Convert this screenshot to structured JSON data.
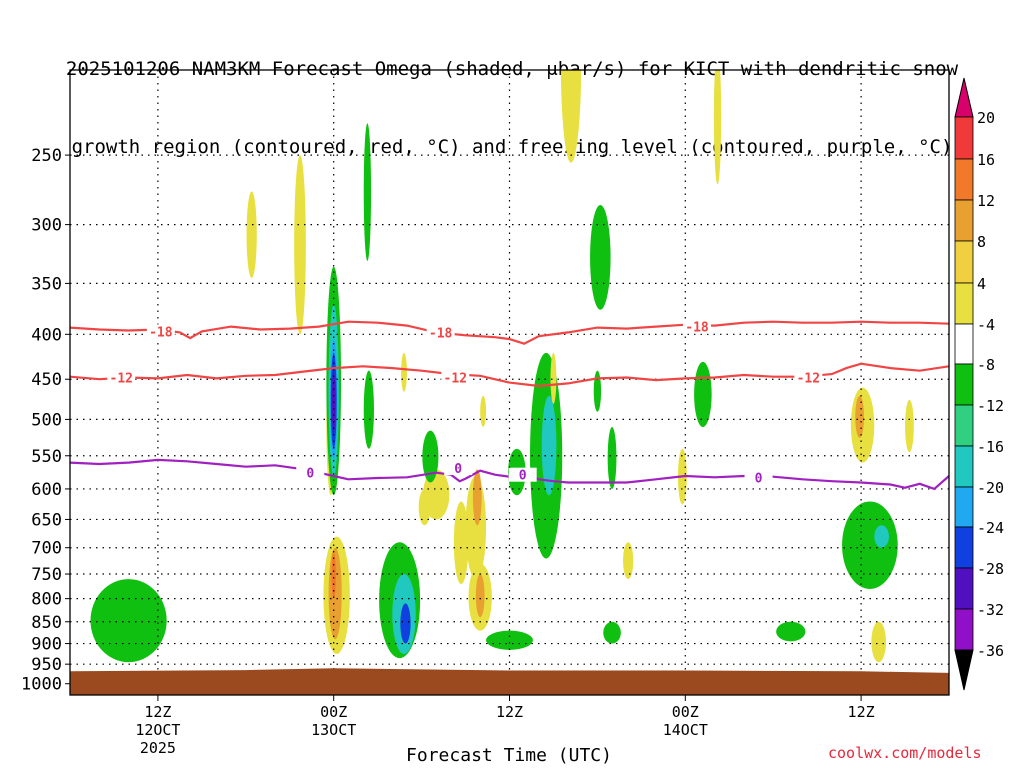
{
  "title_line1": "2025101206 NAM3KM Forecast Omega (shaded, μbar/s) for KICT with dendritic snow",
  "title_line2": "growth region (contoured, red, °C) and freezing level (contoured, purple, °C)",
  "credit": "coolwx.com/models",
  "chart_data": {
    "type": "heatmap",
    "xlabel": "Forecast Time (UTC)",
    "x_ticks": [
      {
        "hour": 12,
        "lines": [
          "12Z",
          "12OCT",
          "2025"
        ]
      },
      {
        "hour": 24,
        "lines": [
          "00Z",
          "13OCT"
        ]
      },
      {
        "hour": 36,
        "lines": [
          "12Z"
        ]
      },
      {
        "hour": 48,
        "lines": [
          "00Z",
          "14OCT"
        ]
      },
      {
        "hour": 60,
        "lines": [
          "12Z"
        ]
      }
    ],
    "xlim_hours": [
      6,
      66
    ],
    "y_ticks": [
      250,
      300,
      350,
      400,
      450,
      500,
      550,
      600,
      650,
      700,
      750,
      800,
      850,
      900,
      950,
      1000
    ],
    "ylim_hPa": [
      1030,
      200
    ],
    "grid": true,
    "colorbar": {
      "labels": [
        20,
        16,
        12,
        8,
        4,
        -4,
        -8,
        -12,
        -16,
        -20,
        -24,
        -28,
        -32,
        -36
      ],
      "colors": [
        "#d8006a",
        "#f03a3a",
        "#f07a2a",
        "#e8a030",
        "#f0d040",
        "#e8e040",
        "#ffffff",
        "#10c010",
        "#30d080",
        "#20c8c0",
        "#20a8f0",
        "#1040e0",
        "#5010c0",
        "#9010c8",
        "#a0a0a0",
        "#000000"
      ]
    },
    "dendritic_contours": [
      {
        "label": "-18",
        "color": "#f04545",
        "points": [
          [
            6,
            393
          ],
          [
            8,
            395
          ],
          [
            10,
            396
          ],
          [
            12,
            395
          ],
          [
            13.5,
            398
          ],
          [
            14.2,
            404
          ],
          [
            15,
            397
          ],
          [
            17,
            392
          ],
          [
            19,
            395
          ],
          [
            21,
            394
          ],
          [
            23,
            392
          ],
          [
            25,
            387
          ],
          [
            27,
            388
          ],
          [
            29,
            391
          ],
          [
            31,
            398
          ],
          [
            33,
            401
          ],
          [
            35,
            403
          ],
          [
            36,
            405
          ],
          [
            37,
            410
          ],
          [
            38,
            402
          ],
          [
            40,
            398
          ],
          [
            42,
            393
          ],
          [
            44,
            394
          ],
          [
            46,
            392
          ],
          [
            48,
            390
          ],
          [
            50,
            391
          ],
          [
            52,
            388
          ],
          [
            54,
            387
          ],
          [
            56,
            388
          ],
          [
            58,
            388
          ],
          [
            60,
            387
          ],
          [
            62,
            388
          ],
          [
            64,
            388
          ],
          [
            66,
            389
          ]
        ],
        "label_at": [
          [
            12.2,
            397
          ],
          [
            31.3,
            398
          ],
          [
            48.8,
            392
          ]
        ]
      },
      {
        "label": "-12",
        "color": "#f04545",
        "points": [
          [
            6,
            447
          ],
          [
            8,
            450
          ],
          [
            10,
            448
          ],
          [
            12,
            449
          ],
          [
            14,
            445
          ],
          [
            16,
            449
          ],
          [
            18,
            446
          ],
          [
            20,
            445
          ],
          [
            22,
            441
          ],
          [
            24,
            437
          ],
          [
            26,
            435
          ],
          [
            28,
            437
          ],
          [
            30,
            440
          ],
          [
            32,
            444
          ],
          [
            34,
            446
          ],
          [
            36,
            454
          ],
          [
            38,
            458
          ],
          [
            40,
            455
          ],
          [
            42,
            449
          ],
          [
            44,
            448
          ],
          [
            46,
            451
          ],
          [
            48,
            449
          ],
          [
            50,
            448
          ],
          [
            52,
            445
          ],
          [
            54,
            447
          ],
          [
            56,
            447
          ],
          [
            58,
            444
          ],
          [
            59,
            437
          ],
          [
            60,
            432
          ],
          [
            62,
            437
          ],
          [
            64,
            440
          ],
          [
            66,
            435
          ]
        ],
        "label_at": [
          [
            9.5,
            448
          ],
          [
            32.3,
            448
          ],
          [
            56.4,
            448
          ]
        ]
      }
    ],
    "freezing_contour": {
      "label": "0",
      "color": "#a020c0",
      "points": [
        [
          6,
          560
        ],
        [
          8,
          562
        ],
        [
          10,
          560
        ],
        [
          12,
          556
        ],
        [
          14,
          558
        ],
        [
          16,
          562
        ],
        [
          18,
          566
        ],
        [
          20,
          564
        ],
        [
          22,
          570
        ],
        [
          24,
          580
        ],
        [
          25,
          585
        ],
        [
          27,
          583
        ],
        [
          29,
          582
        ],
        [
          31,
          575
        ],
        [
          32,
          578
        ],
        [
          32.6,
          588
        ],
        [
          33,
          584
        ],
        [
          34,
          572
        ],
        [
          35,
          578
        ],
        [
          36,
          581
        ],
        [
          37,
          576
        ],
        [
          38,
          585
        ],
        [
          39,
          588
        ],
        [
          40,
          590
        ],
        [
          42,
          590
        ],
        [
          44,
          590
        ],
        [
          46,
          585
        ],
        [
          48,
          580
        ],
        [
          50,
          582
        ],
        [
          52,
          580
        ],
        [
          54,
          581
        ],
        [
          56,
          585
        ],
        [
          58,
          588
        ],
        [
          60,
          590
        ],
        [
          62,
          593
        ],
        [
          63,
          598
        ],
        [
          64,
          592
        ],
        [
          65,
          600
        ],
        [
          66,
          580
        ]
      ],
      "label_at": [
        [
          22.4,
          575
        ],
        [
          32.5,
          568
        ],
        [
          36.9,
          578
        ],
        [
          53,
          582
        ]
      ]
    },
    "omega_shading": [
      {
        "value": 4,
        "center": [
          23.8,
          500
        ],
        "rx": 0.3,
        "ry_hPa": [
          420,
          610
        ],
        "color": "#e8e040"
      },
      {
        "value": -4,
        "center": [
          24,
          480
        ],
        "rx": 0.5,
        "ry_hPa": [
          335,
          610
        ],
        "color": "#10c010"
      },
      {
        "value": -12,
        "center": [
          24,
          480
        ],
        "rx": 0.35,
        "ry_hPa": [
          370,
          580
        ],
        "color": "#20c8c0"
      },
      {
        "value": -16,
        "center": [
          24,
          480
        ],
        "rx": 0.25,
        "ry_hPa": [
          405,
          555
        ],
        "color": "#20a8f0"
      },
      {
        "value": -20,
        "center": [
          24,
          480
        ],
        "rx": 0.2,
        "ry_hPa": [
          420,
          540
        ],
        "color": "#1040e0"
      },
      {
        "value": -24,
        "center": [
          24,
          480
        ],
        "rx": 0.12,
        "ry_hPa": [
          440,
          520
        ],
        "color": "#5010c0"
      },
      {
        "value": -4,
        "center": [
          28.5,
          800
        ],
        "rx": 1.4,
        "ry_hPa": [
          690,
          935
        ],
        "color": "#10c010"
      },
      {
        "value": -12,
        "center": [
          28.8,
          840
        ],
        "rx": 0.8,
        "ry_hPa": [
          750,
          925
        ],
        "color": "#20c8c0"
      },
      {
        "value": -20,
        "center": [
          28.9,
          860
        ],
        "rx": 0.35,
        "ry_hPa": [
          810,
          900
        ],
        "color": "#1040e0"
      },
      {
        "value": 4,
        "center": [
          24.2,
          770
        ],
        "rx": 0.9,
        "ry_hPa": [
          680,
          925
        ],
        "color": "#e8e040"
      },
      {
        "value": 8,
        "center": [
          24.1,
          780
        ],
        "rx": 0.45,
        "ry_hPa": [
          700,
          890
        ],
        "color": "#e8a030"
      },
      {
        "value": 12,
        "center": [
          24.0,
          750
        ],
        "rx": 0.15,
        "ry_hPa": [
          710,
          800
        ],
        "color": "#f07a2a"
      },
      {
        "value": -4,
        "center": [
          10,
          860
        ],
        "rx": 2.6,
        "ry_hPa": [
          760,
          945
        ],
        "color": "#10c010"
      },
      {
        "value": -4,
        "center": [
          38.5,
          520
        ],
        "rx": 1.1,
        "ry_hPa": [
          420,
          720
        ],
        "color": "#10c010"
      },
      {
        "value": -12,
        "center": [
          38.7,
          540
        ],
        "rx": 0.5,
        "ry_hPa": [
          470,
          610
        ],
        "color": "#20c8c0"
      },
      {
        "value": -4,
        "center": [
          36,
          895
        ],
        "rx": 1.6,
        "ry_hPa": [
          870,
          915
        ],
        "color": "#10c010"
      },
      {
        "value": 4,
        "center": [
          33.7,
          650
        ],
        "rx": 0.7,
        "ry_hPa": [
          580,
          760
        ],
        "color": "#e8e040"
      },
      {
        "value": 4,
        "center": [
          32.7,
          680
        ],
        "rx": 0.5,
        "ry_hPa": [
          620,
          770
        ],
        "color": "#e8e040"
      },
      {
        "value": 4,
        "center": [
          31,
          600
        ],
        "rx": 0.9,
        "ry_hPa": [
          570,
          650
        ],
        "color": "#e8e040"
      },
      {
        "value": 4,
        "center": [
          30.2,
          620
        ],
        "rx": 0.4,
        "ry_hPa": [
          600,
          660
        ],
        "color": "#e8e040"
      },
      {
        "value": 4,
        "center": [
          34,
          820
        ],
        "rx": 0.8,
        "ry_hPa": [
          730,
          870
        ],
        "color": "#e8e040"
      },
      {
        "value": 8,
        "center": [
          34,
          800
        ],
        "rx": 0.3,
        "ry_hPa": [
          750,
          840
        ],
        "color": "#e8a030"
      },
      {
        "value": 8,
        "center": [
          33.8,
          610
        ],
        "rx": 0.3,
        "ry_hPa": [
          570,
          660
        ],
        "color": "#e8a030"
      },
      {
        "value": -4,
        "center": [
          26.3,
          270
        ],
        "rx": 0.25,
        "ry_hPa": [
          230,
          330
        ],
        "color": "#10c010"
      },
      {
        "value": 4,
        "center": [
          21.7,
          320
        ],
        "rx": 0.4,
        "ry_hPa": [
          250,
          400
        ],
        "color": "#e8e040"
      },
      {
        "value": 4,
        "center": [
          18.4,
          310
        ],
        "rx": 0.35,
        "ry_hPa": [
          275,
          345
        ],
        "color": "#e8e040"
      },
      {
        "value": 4,
        "center": [
          40.2,
          200
        ],
        "rx": 0.7,
        "ry_hPa": [
          150,
          255
        ],
        "color": "#e8e040"
      },
      {
        "value": 4,
        "center": [
          50.2,
          220
        ],
        "rx": 0.25,
        "ry_hPa": [
          190,
          270
        ],
        "color": "#e8e040"
      },
      {
        "value": -4,
        "center": [
          42.2,
          330
        ],
        "rx": 0.7,
        "ry_hPa": [
          285,
          375
        ],
        "color": "#10c010"
      },
      {
        "value": -4,
        "center": [
          26.4,
          490
        ],
        "rx": 0.35,
        "ry_hPa": [
          440,
          540
        ],
        "color": "#10c010"
      },
      {
        "value": -4,
        "center": [
          30.6,
          560
        ],
        "rx": 0.55,
        "ry_hPa": [
          515,
          590
        ],
        "color": "#10c010"
      },
      {
        "value": -4,
        "center": [
          36.5,
          580
        ],
        "rx": 0.6,
        "ry_hPa": [
          540,
          610
        ],
        "color": "#10c010"
      },
      {
        "value": -4,
        "center": [
          42,
          465
        ],
        "rx": 0.25,
        "ry_hPa": [
          440,
          490
        ],
        "color": "#10c010"
      },
      {
        "value": -4,
        "center": [
          43,
          560
        ],
        "rx": 0.3,
        "ry_hPa": [
          510,
          600
        ],
        "color": "#10c010"
      },
      {
        "value": -4,
        "center": [
          43,
          875
        ],
        "rx": 0.6,
        "ry_hPa": [
          850,
          900
        ],
        "color": "#10c010"
      },
      {
        "value": -4,
        "center": [
          49.2,
          470
        ],
        "rx": 0.6,
        "ry_hPa": [
          430,
          510
        ],
        "color": "#10c010"
      },
      {
        "value": -4,
        "center": [
          55.2,
          870
        ],
        "rx": 1.0,
        "ry_hPa": [
          850,
          895
        ],
        "color": "#10c010"
      },
      {
        "value": -4,
        "center": [
          60.6,
          710
        ],
        "rx": 1.9,
        "ry_hPa": [
          620,
          780
        ],
        "color": "#10c010"
      },
      {
        "value": -12,
        "center": [
          61.4,
          680
        ],
        "rx": 0.5,
        "ry_hPa": [
          660,
          700
        ],
        "color": "#20c8c0"
      },
      {
        "value": 4,
        "center": [
          60.1,
          510
        ],
        "rx": 0.8,
        "ry_hPa": [
          460,
          560
        ],
        "color": "#e8e040"
      },
      {
        "value": 8,
        "center": [
          59.9,
          495
        ],
        "rx": 0.3,
        "ry_hPa": [
          470,
          525
        ],
        "color": "#e8a030"
      },
      {
        "value": 4,
        "center": [
          61.2,
          890
        ],
        "rx": 0.5,
        "ry_hPa": [
          850,
          945
        ],
        "color": "#e8e040"
      },
      {
        "value": 4,
        "center": [
          44.1,
          720
        ],
        "rx": 0.35,
        "ry_hPa": [
          690,
          760
        ],
        "color": "#e8e040"
      },
      {
        "value": 4,
        "center": [
          47.8,
          590
        ],
        "rx": 0.3,
        "ry_hPa": [
          540,
          625
        ],
        "color": "#e8e040"
      },
      {
        "value": 4,
        "center": [
          63.3,
          510
        ],
        "rx": 0.3,
        "ry_hPa": [
          475,
          545
        ],
        "color": "#e8e040"
      },
      {
        "value": 4,
        "center": [
          39,
          450
        ],
        "rx": 0.2,
        "ry_hPa": [
          420,
          480
        ],
        "color": "#e8e040"
      },
      {
        "value": 4,
        "center": [
          28.8,
          440
        ],
        "rx": 0.2,
        "ry_hPa": [
          420,
          465
        ],
        "color": "#e8e040"
      },
      {
        "value": 4,
        "center": [
          34.2,
          490
        ],
        "rx": 0.2,
        "ry_hPa": [
          470,
          510
        ],
        "color": "#e8e040"
      }
    ],
    "ground_color": "#9a4a1e"
  }
}
